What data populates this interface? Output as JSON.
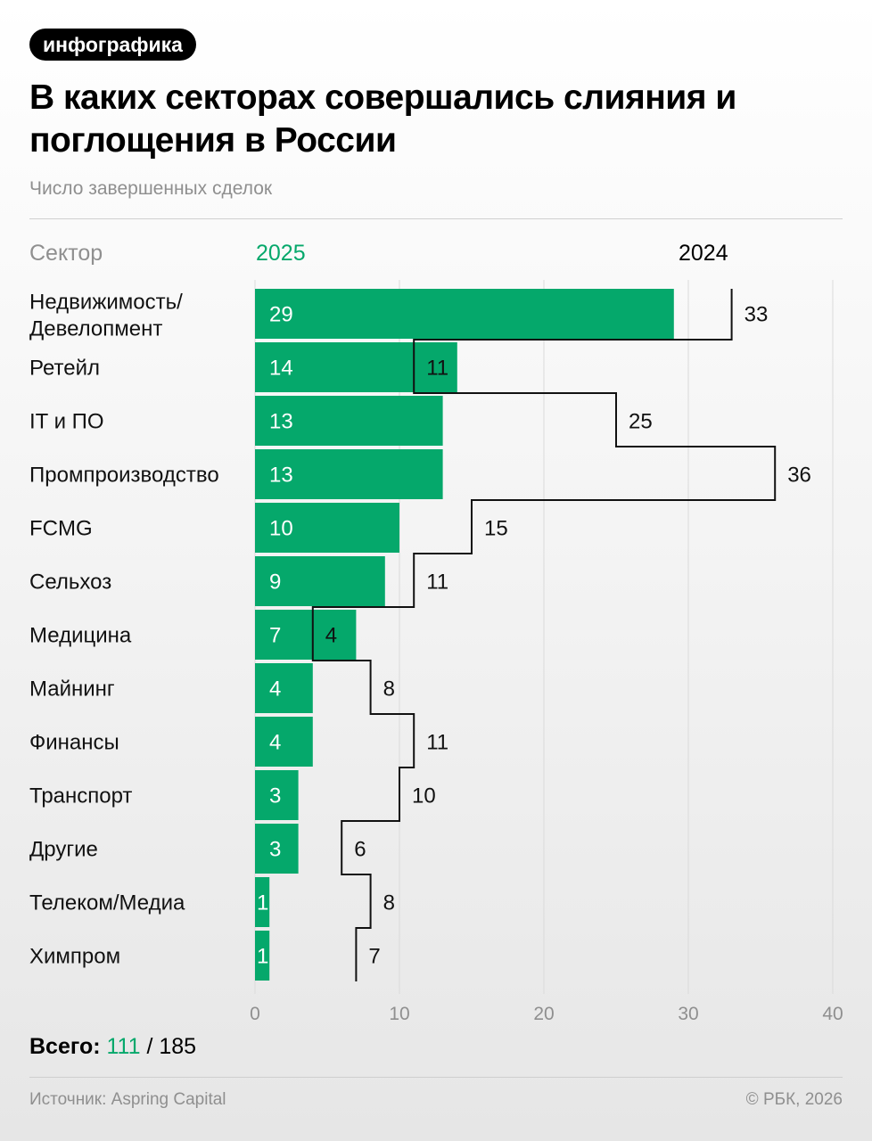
{
  "badge": "инфографика",
  "title": "В каких секторах совершались слияния и поглощения в России",
  "subtitle": "Число завершенных сделок",
  "headers": {
    "sector": "Сектор",
    "y2025": "2025",
    "y2024": "2024"
  },
  "colors": {
    "accent": "#05a86b",
    "line": "#111111",
    "grid": "#dadada",
    "muted": "#8f8f8f"
  },
  "chart_data": {
    "type": "bar",
    "orientation": "horizontal",
    "categories": [
      [
        "Недвижимость/",
        "Девелопмент"
      ],
      [
        "Ретейл"
      ],
      [
        "IT и ПО"
      ],
      [
        "Промпроизводство"
      ],
      [
        "FCMG"
      ],
      [
        "Сельхоз"
      ],
      [
        "Медицина"
      ],
      [
        "Майнинг"
      ],
      [
        "Финансы"
      ],
      [
        "Транспорт"
      ],
      [
        "Другие"
      ],
      [
        "Телеком/Медиа"
      ],
      [
        "Химпром"
      ]
    ],
    "series": [
      {
        "name": "2025",
        "style": "bar",
        "values": [
          29,
          14,
          13,
          13,
          10,
          9,
          7,
          4,
          4,
          3,
          3,
          1,
          1
        ]
      },
      {
        "name": "2024",
        "style": "step-line",
        "values": [
          33,
          11,
          25,
          36,
          15,
          11,
          4,
          8,
          11,
          10,
          6,
          8,
          7
        ]
      }
    ],
    "xlim": [
      0,
      40
    ],
    "xticks": [
      "0",
      "10",
      "20",
      "30",
      "40"
    ],
    "grid": true
  },
  "total": {
    "label": "Всего:",
    "v2025": "111",
    "sep": "/",
    "v2024": "185"
  },
  "footer": {
    "source": "Источник: Aspring Capital",
    "copyright": "© РБК, 2026"
  }
}
